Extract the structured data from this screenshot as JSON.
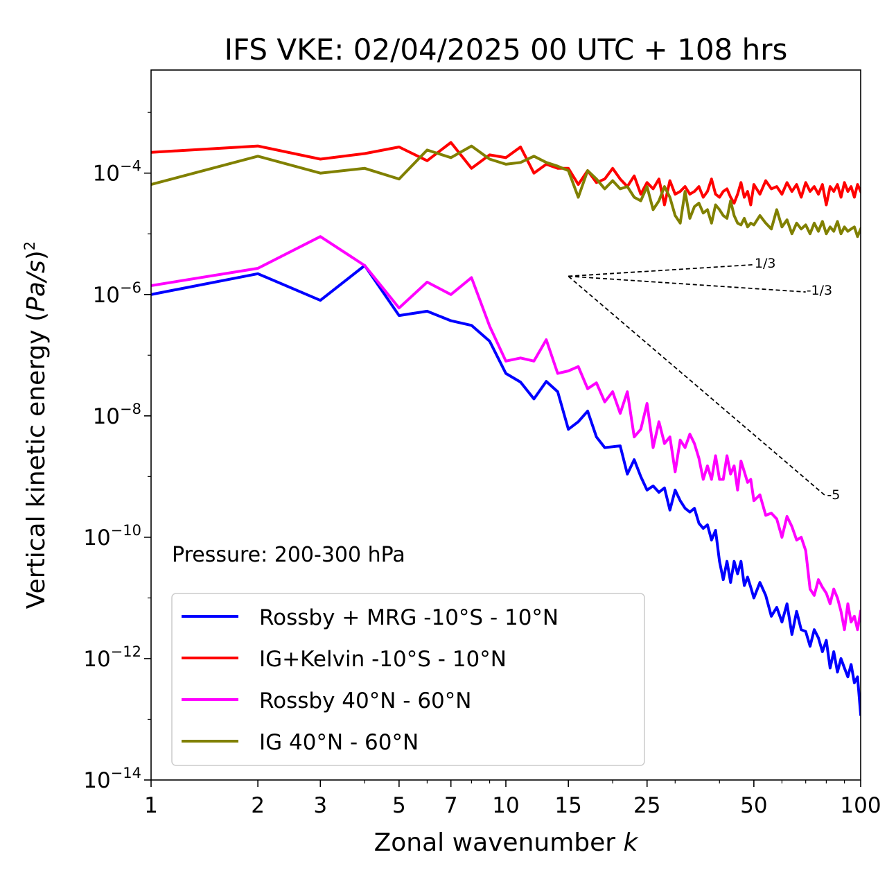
{
  "chart_data": {
    "type": "line",
    "title": "IFS VKE: 02/04/2025 00 UTC + 108 hrs",
    "xlabel": "Zonal wavenumber",
    "xlabel_var": "k",
    "ylabel_prefix": "Vertical kinetic energy (",
    "ylabel_var": "Pa/s",
    "ylabel_suffix": ")",
    "ylabel_exp": "2",
    "xscale": "log",
    "yscale": "log",
    "xlim": [
      1,
      100
    ],
    "ylim": [
      1e-14,
      0.005
    ],
    "grid": false,
    "legend_position": "lower-left",
    "x_ticks": [
      {
        "value": 1,
        "label": "1"
      },
      {
        "value": 2,
        "label": "2"
      },
      {
        "value": 3,
        "label": "3"
      },
      {
        "value": 5,
        "label": "5"
      },
      {
        "value": 7,
        "label": "7"
      },
      {
        "value": 10,
        "label": "10"
      },
      {
        "value": 15,
        "label": "15"
      },
      {
        "value": 25,
        "label": "25"
      },
      {
        "value": 50,
        "label": "50"
      },
      {
        "value": 100,
        "label": "100"
      }
    ],
    "y_ticks": [
      {
        "value": 0.0001,
        "base": "10",
        "exp": "−4"
      },
      {
        "value": 1e-06,
        "base": "10",
        "exp": "−6"
      },
      {
        "value": 1e-08,
        "base": "10",
        "exp": "−8"
      },
      {
        "value": 1e-10,
        "base": "10",
        "exp": "−10"
      },
      {
        "value": 1e-12,
        "base": "10",
        "exp": "−12"
      },
      {
        "value": 1e-14,
        "base": "10",
        "exp": "−14"
      }
    ],
    "annotation": "Pressure: 200-300 hPa",
    "reference_lines": [
      {
        "label": "1/3",
        "slope": 0.3333,
        "x": [
          15,
          50
        ],
        "y": [
          2e-06,
          3.1e-06
        ]
      },
      {
        "label": "-1/3",
        "slope": -0.3333,
        "x": [
          15,
          70
        ],
        "y": [
          2e-06,
          1.1e-06
        ]
      },
      {
        "label": "-5",
        "slope": -5,
        "x": [
          15,
          80
        ],
        "y": [
          2e-06,
          4.7e-10
        ]
      }
    ],
    "series": [
      {
        "name": "Rossby + MRG -10°S - 10°N",
        "color": "#0000ff",
        "x": [
          1,
          2,
          3,
          4,
          5,
          6,
          7,
          8,
          9,
          10,
          11,
          12,
          13,
          14,
          15,
          16,
          17,
          18,
          19,
          20,
          21,
          22,
          23,
          24,
          25,
          26,
          27,
          28,
          29,
          30,
          31,
          32,
          33,
          34,
          35,
          36,
          37,
          38,
          39,
          40,
          41,
          42,
          43,
          44,
          45,
          46,
          47,
          48,
          49,
          50,
          52,
          54,
          56,
          58,
          60,
          62,
          64,
          66,
          68,
          70,
          72,
          74,
          76,
          78,
          80,
          82,
          84,
          86,
          88,
          90,
          92,
          94,
          96,
          98,
          100
        ],
        "y": [
          1e-06,
          2.2e-06,
          8e-07,
          3e-06,
          4.5e-07,
          5.3e-07,
          3.7e-07,
          3.1e-07,
          1.7e-07,
          5e-08,
          3.6e-08,
          1.9e-08,
          3.7e-08,
          2.5e-08,
          6e-09,
          8e-09,
          1.2e-08,
          4.5e-09,
          3e-09,
          3.1e-09,
          3.2e-09,
          1.1e-09,
          1.9e-09,
          1e-09,
          6e-10,
          7e-10,
          5.5e-10,
          6.5e-10,
          2.8e-10,
          6e-10,
          4e-10,
          3e-10,
          2.6e-10,
          3e-10,
          1.7e-10,
          1.4e-10,
          1.6e-10,
          9e-11,
          1.3e-10,
          4e-11,
          2e-11,
          4e-11,
          1.8e-11,
          4e-11,
          2.5e-11,
          4e-11,
          1.6e-11,
          2.2e-11,
          1.5e-11,
          1e-11,
          1.8e-11,
          1.1e-11,
          5e-12,
          7e-12,
          4e-12,
          8e-12,
          2.5e-12,
          6e-12,
          3e-12,
          2.8e-12,
          1.6e-12,
          3e-12,
          2.2e-12,
          1.3e-12,
          2e-12,
          7e-13,
          1.3e-12,
          6e-13,
          1e-12,
          7e-13,
          5e-13,
          8e-13,
          4e-13,
          5e-13,
          1.2e-13
        ]
      },
      {
        "name": "IG+Kelvin -10°S - 10°N",
        "color": "#ff0000",
        "x": [
          1,
          2,
          3,
          4,
          5,
          6,
          7,
          8,
          9,
          10,
          11,
          12,
          13,
          14,
          15,
          16,
          17,
          18,
          19,
          20,
          21,
          22,
          23,
          24,
          25,
          26,
          27,
          28,
          29,
          30,
          31,
          32,
          33,
          34,
          35,
          36,
          37,
          38,
          39,
          40,
          41,
          42,
          43,
          44,
          45,
          46,
          47,
          48,
          49,
          50,
          52,
          54,
          56,
          58,
          60,
          62,
          64,
          66,
          68,
          70,
          72,
          74,
          76,
          78,
          80,
          82,
          84,
          86,
          88,
          90,
          92,
          94,
          96,
          98,
          100
        ],
        "y": [
          0.00022,
          0.00028,
          0.00017,
          0.00021,
          0.00027,
          0.00016,
          0.00032,
          0.00012,
          0.0002,
          0.00018,
          0.00027,
          0.0001,
          0.00014,
          0.00012,
          0.00012,
          6.5e-05,
          0.00011,
          7e-05,
          8e-05,
          0.00012,
          8e-05,
          6e-05,
          9e-05,
          4.5e-05,
          7e-05,
          5.5e-05,
          8e-05,
          3e-05,
          7.5e-05,
          4.5e-05,
          5e-05,
          6e-05,
          4.5e-05,
          5e-05,
          6e-05,
          4e-05,
          5e-05,
          8e-05,
          4.5e-05,
          4e-05,
          5e-05,
          5.5e-05,
          4e-05,
          3.2e-05,
          4.5e-05,
          7e-05,
          4e-05,
          5e-05,
          3e-05,
          6.5e-05,
          4.5e-05,
          7.5e-05,
          5.5e-05,
          6e-05,
          4.5e-05,
          7e-05,
          5e-05,
          6.5e-05,
          4e-05,
          7e-05,
          5e-05,
          6e-05,
          4.5e-05,
          6.5e-05,
          3e-05,
          6e-05,
          5e-05,
          6.5e-05,
          4e-05,
          7e-05,
          5e-05,
          6e-05,
          4e-05,
          6.5e-05,
          5e-05
        ]
      },
      {
        "name": "Rossby 40°N - 60°N",
        "color": "#ff00ff",
        "x": [
          1,
          2,
          3,
          4,
          5,
          6,
          7,
          8,
          9,
          10,
          11,
          12,
          13,
          14,
          15,
          16,
          17,
          18,
          19,
          20,
          21,
          22,
          23,
          24,
          25,
          26,
          27,
          28,
          29,
          30,
          31,
          32,
          33,
          34,
          35,
          36,
          37,
          38,
          39,
          40,
          41,
          42,
          43,
          44,
          45,
          46,
          47,
          48,
          49,
          50,
          52,
          54,
          56,
          58,
          60,
          62,
          64,
          66,
          68,
          70,
          72,
          74,
          76,
          78,
          80,
          82,
          84,
          86,
          88,
          90,
          92,
          94,
          96,
          98,
          100
        ],
        "y": [
          1.4e-06,
          2.7e-06,
          9e-06,
          3e-06,
          6e-07,
          1.6e-06,
          1e-06,
          1.9e-06,
          3e-07,
          8e-08,
          9e-08,
          8e-08,
          1.8e-07,
          5e-08,
          5.5e-08,
          6.5e-08,
          2.8e-08,
          3.5e-08,
          1.7e-08,
          2.5e-08,
          1.1e-08,
          2.5e-08,
          4.5e-09,
          6e-09,
          1.6e-08,
          3e-09,
          8e-09,
          3.5e-09,
          4.5e-09,
          1.2e-09,
          4e-09,
          3e-09,
          5e-09,
          3.5e-09,
          2e-09,
          9e-10,
          1.5e-09,
          9e-10,
          2.2e-09,
          9e-10,
          9e-10,
          2.2e-09,
          1.1e-09,
          1.5e-09,
          6e-10,
          1.8e-09,
          1.2e-09,
          8e-10,
          9e-10,
          4e-10,
          5e-10,
          2.3e-10,
          2.5e-10,
          2e-10,
          1e-10,
          2.2e-10,
          1.5e-10,
          9e-11,
          1e-10,
          6e-11,
          1.4e-11,
          1.1e-11,
          2e-11,
          1.5e-11,
          1.2e-11,
          8e-12,
          1.4e-11,
          1e-11,
          6e-12,
          3e-12,
          8e-12,
          4e-12,
          5e-12,
          3e-12,
          6e-12
        ]
      },
      {
        "name": "IG 40°N - 60°N",
        "color": "#808000",
        "x": [
          1,
          2,
          3,
          4,
          5,
          6,
          7,
          8,
          9,
          10,
          11,
          12,
          13,
          14,
          15,
          16,
          17,
          18,
          19,
          20,
          21,
          22,
          23,
          24,
          25,
          26,
          27,
          28,
          29,
          30,
          31,
          32,
          33,
          34,
          35,
          36,
          37,
          38,
          39,
          40,
          41,
          42,
          43,
          44,
          45,
          46,
          47,
          48,
          49,
          50,
          52,
          54,
          56,
          58,
          60,
          62,
          64,
          66,
          68,
          70,
          72,
          74,
          76,
          78,
          80,
          82,
          84,
          86,
          88,
          90,
          92,
          94,
          96,
          98,
          100
        ],
        "y": [
          6.5e-05,
          0.00019,
          0.0001,
          0.00012,
          8e-05,
          0.00024,
          0.00018,
          0.00028,
          0.00017,
          0.00014,
          0.00015,
          0.00019,
          0.00015,
          0.00013,
          0.00011,
          4e-05,
          0.00011,
          8e-05,
          5.5e-05,
          7.5e-05,
          5.5e-05,
          6e-05,
          4e-05,
          3.5e-05,
          6e-05,
          2.5e-05,
          3.5e-05,
          6e-05,
          4e-05,
          2e-05,
          1.5e-05,
          5e-05,
          1.8e-05,
          2.8e-05,
          3.2e-05,
          2.2e-05,
          2.5e-05,
          1.5e-05,
          3e-05,
          2.5e-05,
          2e-05,
          1.8e-05,
          3.5e-05,
          2e-05,
          1.5e-05,
          1.4e-05,
          1.8e-05,
          1.3e-05,
          1.5e-05,
          1.4e-05,
          2e-05,
          1.5e-05,
          1.2e-05,
          2.5e-05,
          1.3e-05,
          1.7e-05,
          1e-05,
          1.5e-05,
          1.2e-05,
          1.4e-05,
          1e-05,
          1.5e-05,
          1.1e-05,
          1.6e-05,
          1e-05,
          1.3e-05,
          1.1e-05,
          1.6e-05,
          1e-05,
          1.3e-05,
          1.1e-05,
          1.2e-05,
          1.3e-05,
          9e-06,
          1.2e-05
        ]
      }
    ]
  }
}
